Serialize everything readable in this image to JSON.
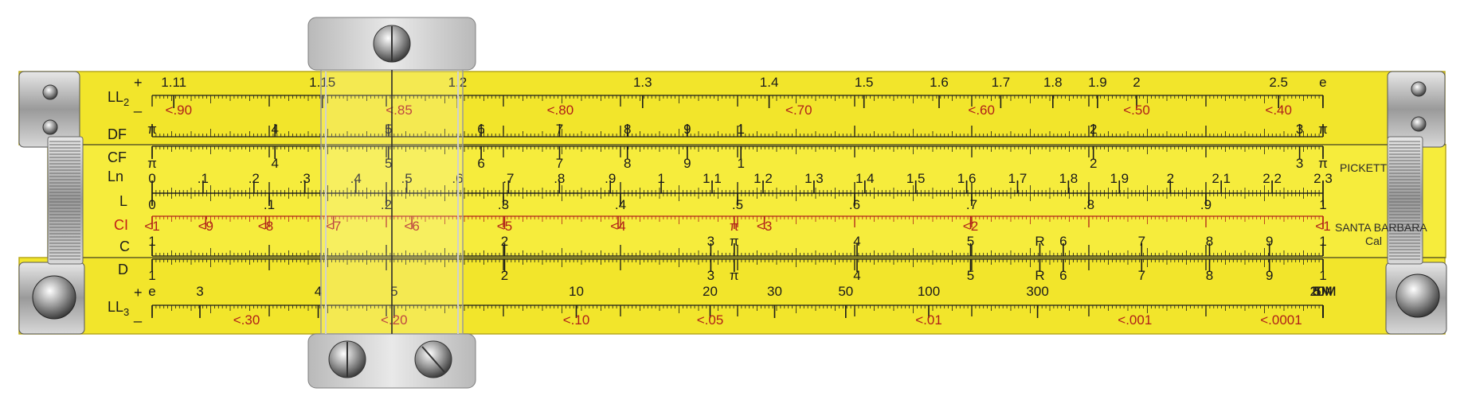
{
  "instrument": {
    "brand": "PICKETT",
    "brand_location": "SANTA BARBARA",
    "brand_location_tail": "Cal",
    "body_color": "#f2e52b",
    "slide_color": "#f6ec3c",
    "mark_color": "#1a1a1a",
    "red_mark_color": "#b0201a"
  },
  "scales": [
    {
      "id": "LL2",
      "name": "LL",
      "sub": "2",
      "sign_top": "+",
      "sign_bottom": "_",
      "red": false,
      "range": [
        1.105,
        2.718
      ],
      "type": "loglog",
      "labels": [
        {
          "v": 1.11,
          "t": "1.11"
        },
        {
          "v": 1.15,
          "t": "1.15"
        },
        {
          "v": 1.2,
          "t": "1.2"
        },
        {
          "v": 1.3,
          "t": "1.3"
        },
        {
          "v": 1.4,
          "t": "1.4"
        },
        {
          "v": 1.5,
          "t": "1.5"
        },
        {
          "v": 1.6,
          "t": "1.6"
        },
        {
          "v": 1.7,
          "t": "1.7"
        },
        {
          "v": 1.8,
          "t": "1.8"
        },
        {
          "v": 1.9,
          "t": "1.9"
        },
        {
          "v": 2,
          "t": "2"
        },
        {
          "v": 2.5,
          "t": "2.5"
        },
        {
          "v": 2.718,
          "t": "e"
        }
      ],
      "red_labels": [
        {
          "v": 0.9,
          "t": "<.90"
        },
        {
          "v": 0.85,
          "t": "<.85"
        },
        {
          "v": 0.8,
          "t": "<.80"
        },
        {
          "v": 0.7,
          "t": "<.70"
        },
        {
          "v": 0.6,
          "t": "<.60"
        },
        {
          "v": 0.5,
          "t": "<.50"
        },
        {
          "v": 0.4,
          "t": "<.40"
        }
      ]
    },
    {
      "id": "DF",
      "name": "DF",
      "red": false,
      "type": "folded",
      "labels": [
        {
          "v": 3.1416,
          "t": "π"
        },
        {
          "v": 4,
          "t": "4"
        },
        {
          "v": 5,
          "t": "5"
        },
        {
          "v": 6,
          "t": "6"
        },
        {
          "v": 7,
          "t": "7"
        },
        {
          "v": 8,
          "t": "8"
        },
        {
          "v": 9,
          "t": "9"
        },
        {
          "v": 10,
          "t": "1"
        },
        {
          "v": 20,
          "t": "2"
        },
        {
          "v": 30,
          "t": "3"
        },
        {
          "v": 31.416,
          "t": "π"
        }
      ]
    },
    {
      "id": "CF",
      "name": "CF",
      "red": false,
      "type": "folded",
      "labels": [
        {
          "v": 3.1416,
          "t": "π"
        },
        {
          "v": 4,
          "t": "4"
        },
        {
          "v": 5,
          "t": "5"
        },
        {
          "v": 6,
          "t": "6"
        },
        {
          "v": 7,
          "t": "7"
        },
        {
          "v": 8,
          "t": "8"
        },
        {
          "v": 9,
          "t": "9"
        },
        {
          "v": 10,
          "t": "1"
        },
        {
          "v": 20,
          "t": "2"
        },
        {
          "v": 30,
          "t": "3"
        },
        {
          "v": 31.416,
          "t": "π"
        }
      ]
    },
    {
      "id": "Ln",
      "name": "Ln",
      "red": false,
      "type": "linear",
      "range": [
        0,
        2.3
      ],
      "labels": [
        {
          "v": 0,
          "t": "0"
        },
        {
          "v": 0.1,
          "t": ".1"
        },
        {
          "v": 0.2,
          "t": ".2"
        },
        {
          "v": 0.3,
          "t": ".3"
        },
        {
          "v": 0.4,
          "t": ".4"
        },
        {
          "v": 0.5,
          "t": ".5"
        },
        {
          "v": 0.6,
          "t": ".6"
        },
        {
          "v": 0.7,
          "t": ".7"
        },
        {
          "v": 0.8,
          "t": ".8"
        },
        {
          "v": 0.9,
          "t": ".9"
        },
        {
          "v": 1.0,
          "t": "1"
        },
        {
          "v": 1.1,
          "t": "1.1"
        },
        {
          "v": 1.2,
          "t": "1.2"
        },
        {
          "v": 1.3,
          "t": "1.3"
        },
        {
          "v": 1.4,
          "t": "1.4"
        },
        {
          "v": 1.5,
          "t": "1.5"
        },
        {
          "v": 1.6,
          "t": "1.6"
        },
        {
          "v": 1.7,
          "t": "1.7"
        },
        {
          "v": 1.8,
          "t": "1.8"
        },
        {
          "v": 1.9,
          "t": "1.9"
        },
        {
          "v": 2.0,
          "t": "2"
        },
        {
          "v": 2.1,
          "t": "2.1"
        },
        {
          "v": 2.2,
          "t": "2.2"
        },
        {
          "v": 2.3,
          "t": "2.3"
        }
      ]
    },
    {
      "id": "L",
      "name": "L",
      "red": false,
      "type": "linear",
      "range": [
        0,
        1
      ],
      "labels": [
        {
          "v": 0,
          "t": "0"
        },
        {
          "v": 0.1,
          "t": ".1"
        },
        {
          "v": 0.2,
          "t": ".2"
        },
        {
          "v": 0.3,
          "t": ".3"
        },
        {
          "v": 0.4,
          "t": ".4"
        },
        {
          "v": 0.5,
          "t": ".5"
        },
        {
          "v": 0.6,
          "t": ".6"
        },
        {
          "v": 0.7,
          "t": ".7"
        },
        {
          "v": 0.8,
          "t": ".8"
        },
        {
          "v": 0.9,
          "t": ".9"
        },
        {
          "v": 1.0,
          "t": "1"
        }
      ]
    },
    {
      "id": "CI",
      "name": "CI",
      "red": true,
      "type": "inverse",
      "labels": [
        {
          "v": 1,
          "t": "<1"
        },
        {
          "v": 0.9,
          "t": "<9"
        },
        {
          "v": 0.8,
          "t": "<8"
        },
        {
          "v": 0.7,
          "t": "<7"
        },
        {
          "v": 0.6,
          "t": "<6"
        },
        {
          "v": 0.5,
          "t": "<5"
        },
        {
          "v": 0.4,
          "t": "<4"
        },
        {
          "v": 0.3183,
          "t": "π"
        },
        {
          "v": 0.3,
          "t": "<3"
        },
        {
          "v": 0.2,
          "t": "<2"
        },
        {
          "v": 0.1,
          "t": "<1"
        }
      ]
    },
    {
      "id": "C",
      "name": "C",
      "red": false,
      "type": "log",
      "labels": [
        {
          "v": 1,
          "t": "1"
        },
        {
          "v": 2,
          "t": "2"
        },
        {
          "v": 3,
          "t": "3"
        },
        {
          "v": 3.1416,
          "t": "π"
        },
        {
          "v": 4,
          "t": "4"
        },
        {
          "v": 5,
          "t": "5"
        },
        {
          "v": 5.73,
          "t": "R"
        },
        {
          "v": 6,
          "t": "6"
        },
        {
          "v": 7,
          "t": "7"
        },
        {
          "v": 8,
          "t": "8"
        },
        {
          "v": 9,
          "t": "9"
        },
        {
          "v": 10,
          "t": "1"
        }
      ]
    },
    {
      "id": "D",
      "name": "D",
      "red": false,
      "type": "log",
      "labels": [
        {
          "v": 1,
          "t": "1"
        },
        {
          "v": 2,
          "t": "2"
        },
        {
          "v": 3,
          "t": "3"
        },
        {
          "v": 3.1416,
          "t": "π"
        },
        {
          "v": 4,
          "t": "4"
        },
        {
          "v": 5,
          "t": "5"
        },
        {
          "v": 5.73,
          "t": "R"
        },
        {
          "v": 6,
          "t": "6"
        },
        {
          "v": 7,
          "t": "7"
        },
        {
          "v": 8,
          "t": "8"
        },
        {
          "v": 9,
          "t": "9"
        },
        {
          "v": 10,
          "t": "1"
        }
      ]
    },
    {
      "id": "LL3",
      "name": "LL",
      "sub": "3",
      "sign_top": "+",
      "sign_bottom": "_",
      "red": false,
      "type": "loglog3",
      "labels": [
        {
          "v": 2.718,
          "t": "e"
        },
        {
          "v": 3,
          "t": "3"
        },
        {
          "v": 4,
          "t": "4"
        },
        {
          "v": 5,
          "t": "5"
        },
        {
          "v": 10,
          "t": "10"
        },
        {
          "v": 20,
          "t": "20"
        },
        {
          "v": 30,
          "t": "30"
        },
        {
          "v": 50,
          "t": "50"
        },
        {
          "v": 100,
          "t": "100"
        },
        {
          "v": 300,
          "t": "300"
        },
        {
          "v": 1000000,
          "t": "1M"
        },
        {
          "v": 5000000,
          "t": "5M"
        },
        {
          "v": 10000000,
          "t": "10M"
        },
        {
          "v": 20000000,
          "t": "20M"
        }
      ],
      "red_labels": [
        {
          "v": 0.3,
          "t": "<.30"
        },
        {
          "v": 0.2,
          "t": "<.20"
        },
        {
          "v": 0.1,
          "t": "<.10"
        },
        {
          "v": 0.05,
          "t": "<.05"
        },
        {
          "v": 0.01,
          "t": "<.01"
        },
        {
          "v": 0.001,
          "t": "<.001"
        },
        {
          "v": 0.0001,
          "t": "<.0001"
        }
      ]
    }
  ]
}
